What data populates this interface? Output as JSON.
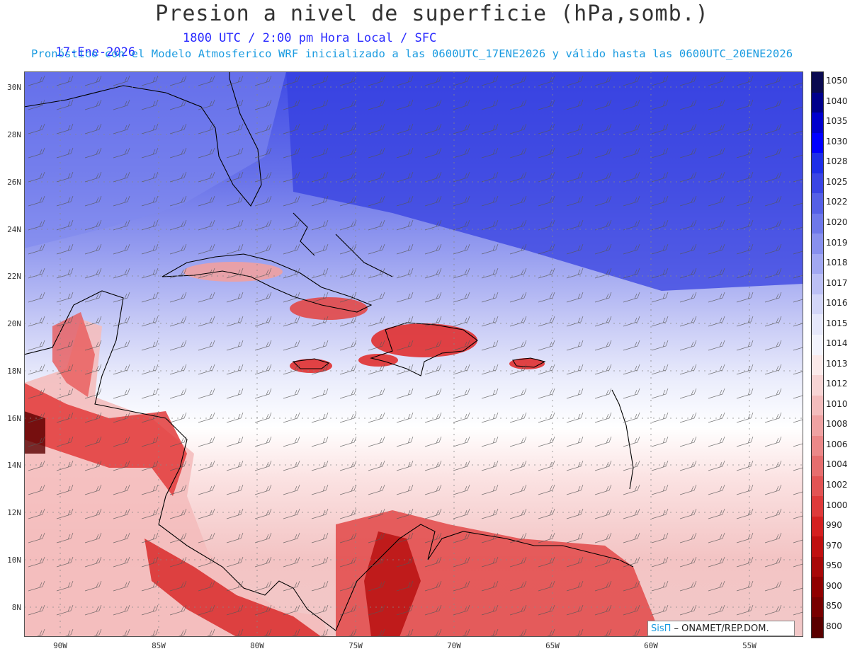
{
  "header": {
    "title": "Presion a nivel de superficie (hPa,somb.)",
    "date": "17-Ene-2026",
    "time_line": "1800 UTC / 2:00 pm Hora Local / SFC",
    "forecast_line": "Pronóstico con el Modelo Atmosferico WRF inicializado a las 0600UTC_17ENE2026 y válido hasta las  0600UTC_20ENE2026"
  },
  "axes": {
    "lat_labels": [
      "30N",
      "28N",
      "26N",
      "24N",
      "22N",
      "20N",
      "18N",
      "16N",
      "14N",
      "12N",
      "10N",
      "8N"
    ],
    "lon_labels": [
      "90W",
      "85W",
      "80W",
      "75W",
      "70W",
      "65W",
      "60W",
      "55W"
    ]
  },
  "legend": {
    "levels": [
      "1050",
      "1040",
      "1035",
      "1030",
      "1028",
      "1025",
      "1022",
      "1020",
      "1019",
      "1018",
      "1017",
      "1016",
      "1015",
      "1014",
      "1013",
      "1012",
      "1010",
      "1008",
      "1006",
      "1004",
      "1002",
      "1000",
      "990",
      "970",
      "950",
      "900",
      "850",
      "800"
    ],
    "colors": [
      "#0a0a50",
      "#00008b",
      "#0000cd",
      "#0000ff",
      "#1e2ee8",
      "#3a45e4",
      "#5560e6",
      "#6e78ea",
      "#8890ee",
      "#a2a8f2",
      "#bcc0f5",
      "#d3d6f8",
      "#e6e8fb",
      "#f3f4fd",
      "#fbeaea",
      "#f7d4d4",
      "#f3bcbc",
      "#efa2a2",
      "#eb8888",
      "#e66e6e",
      "#e25454",
      "#de3a3a",
      "#d42020",
      "#c01010",
      "#a80808",
      "#900000",
      "#780000",
      "#5a0000"
    ]
  },
  "credit": {
    "brand": "SisΠ",
    "text": " – ONAMET/REP.DOM."
  },
  "map_info": {
    "region": "Caribbean",
    "lat_range": [
      7,
      31
    ],
    "lon_range": [
      -92,
      -52
    ],
    "field": "surface pressure shaded with wind barbs"
  }
}
